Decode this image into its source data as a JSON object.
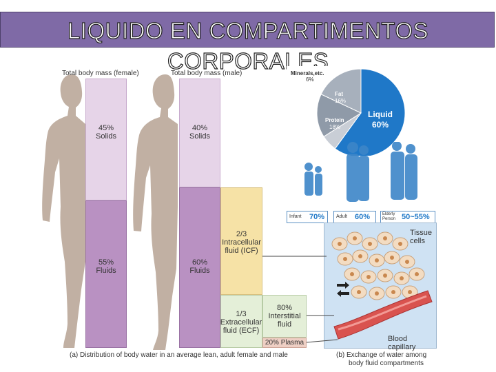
{
  "title": {
    "line1": "LIQUIDO EN COMPARTIMENTOS",
    "line2": "CORPORALES"
  },
  "panel_a": {
    "female_header": "Total body mass (female)",
    "male_header": "Total body mass (male)",
    "female_solids_pct": "45%",
    "female_solids_label": "Solids",
    "female_fluids_pct": "55%",
    "female_fluids_label": "Fluids",
    "male_solids_pct": "40%",
    "male_solids_label": "Solids",
    "male_fluids_pct": "60%",
    "male_fluids_label": "Fluids",
    "icf_line1": "2/3",
    "icf_line2": "Intracellular",
    "icf_line3": "fluid (ICF)",
    "ecf_line1": "1/3",
    "ecf_line2": "Extracellular",
    "ecf_line3": "fluid (ECF)",
    "isf_line1": "80%",
    "isf_line2": "Interstitial",
    "isf_line3": "fluid",
    "plasma": "20% Plasma",
    "caption": "(a) Distribution of body water in an average lean, adult female and male"
  },
  "pie": {
    "minerals_label": "Minerals,etc.",
    "minerals_pct": "6%",
    "fat_label": "Fat",
    "fat_pct": "16%",
    "protein_label": "Protein",
    "protein_pct": "18%",
    "liquid_label": "Liquid",
    "liquid_pct": "60%",
    "values": [
      60,
      6,
      16,
      18
    ],
    "colors": {
      "liquid": "#1f78c8",
      "minerals": "#c9ced6",
      "fat": "#8f9aa8",
      "protein": "#a7b0bc"
    }
  },
  "ages": [
    {
      "label": "Infant",
      "value": "70%"
    },
    {
      "label": "Adult",
      "value": "60%"
    },
    {
      "label": "Elderly Person",
      "value": "50~55%"
    }
  ],
  "panel_b": {
    "tissue_cells": "Tissue cells",
    "capillary": "Blood capillary",
    "caption_line1": "(b) Exchange of water among",
    "caption_line2": "body fluid compartments"
  },
  "colors": {
    "title_bar": "#7f6aa6",
    "solids_box": "#e6d4e8",
    "fluids_box": "#b991c2",
    "icf_box": "#f6e2a6",
    "ecf_box": "#e4efd8",
    "plasma_box": "#eecfc4",
    "silhouette": "#c1b0a3"
  }
}
